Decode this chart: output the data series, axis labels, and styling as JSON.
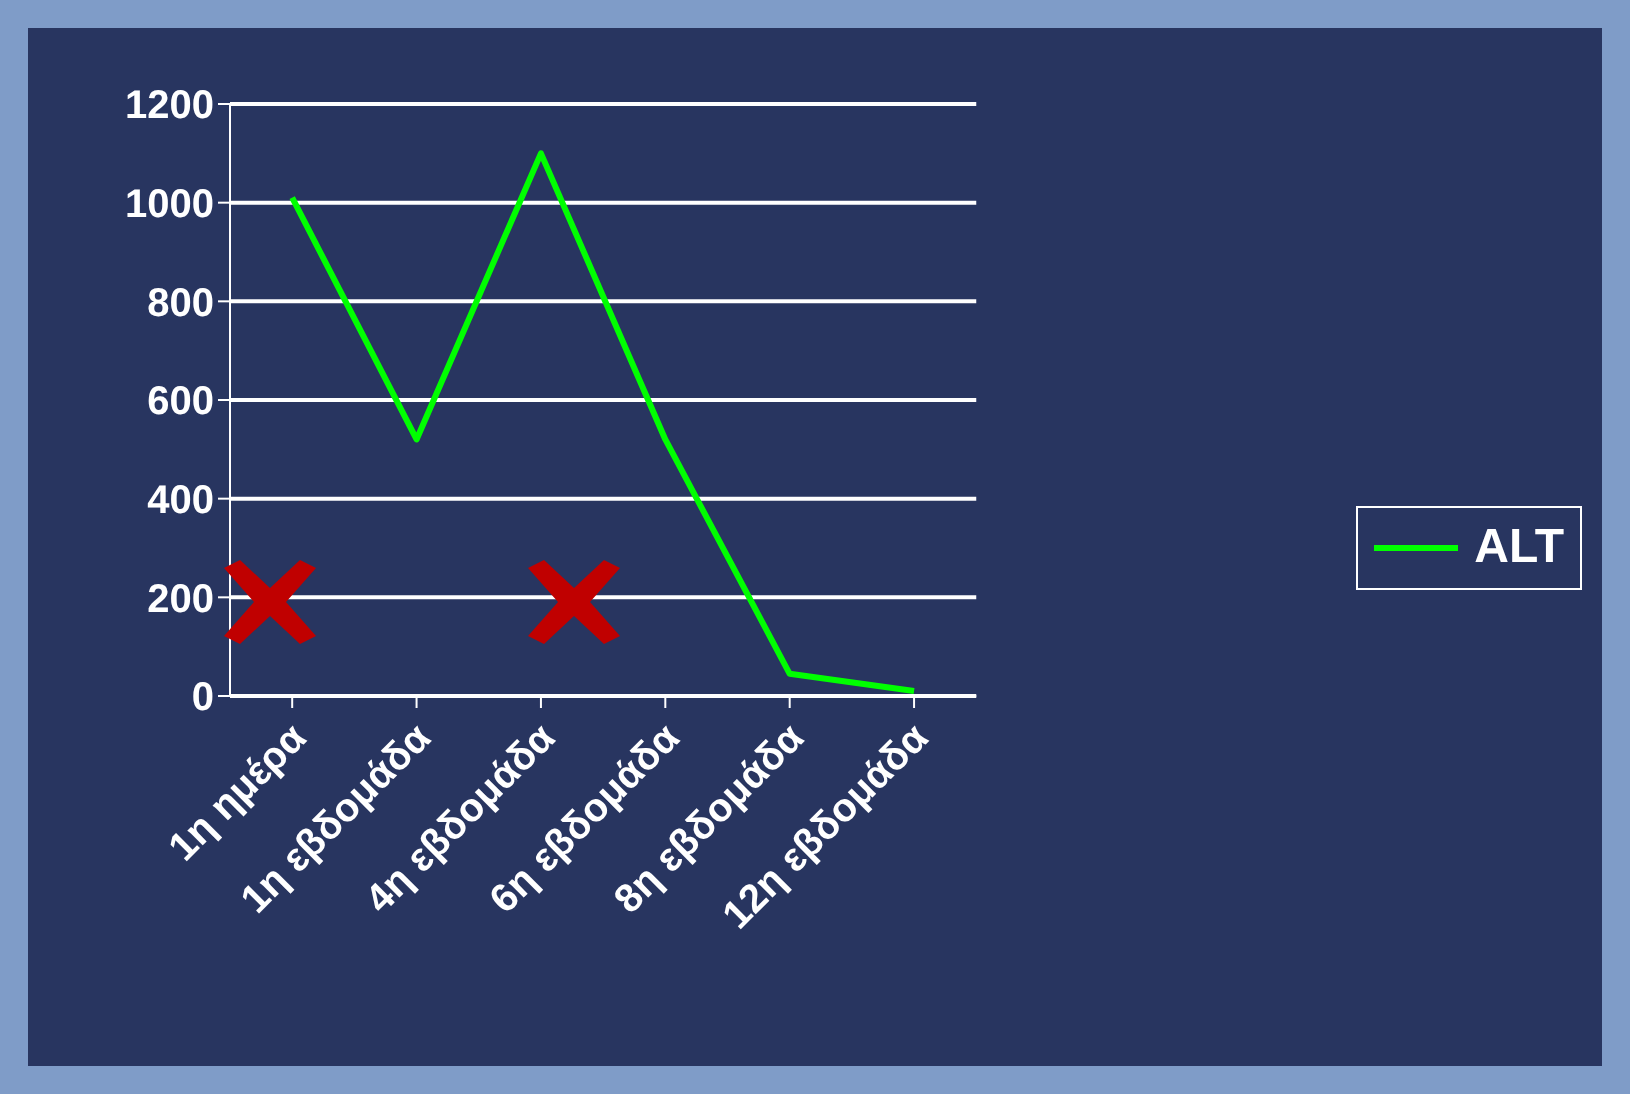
{
  "chart_data": {
    "type": "line",
    "categories": [
      "1η ημέρα",
      "1η εβδομάδα",
      "4η εβδομάδα",
      "6η εβδομάδα",
      "8η εβδομάδα",
      "12η εβδομάδα"
    ],
    "series": [
      {
        "name": "ALT",
        "color": "#00ff00",
        "values": [
          1010,
          520,
          1100,
          520,
          45,
          10
        ]
      }
    ],
    "ylim": [
      0,
      1200
    ],
    "yticks": [
      0,
      200,
      400,
      600,
      800,
      1000,
      1200
    ],
    "grid": "y",
    "legend": "right",
    "marker": "none",
    "line_style": "solid"
  }
}
